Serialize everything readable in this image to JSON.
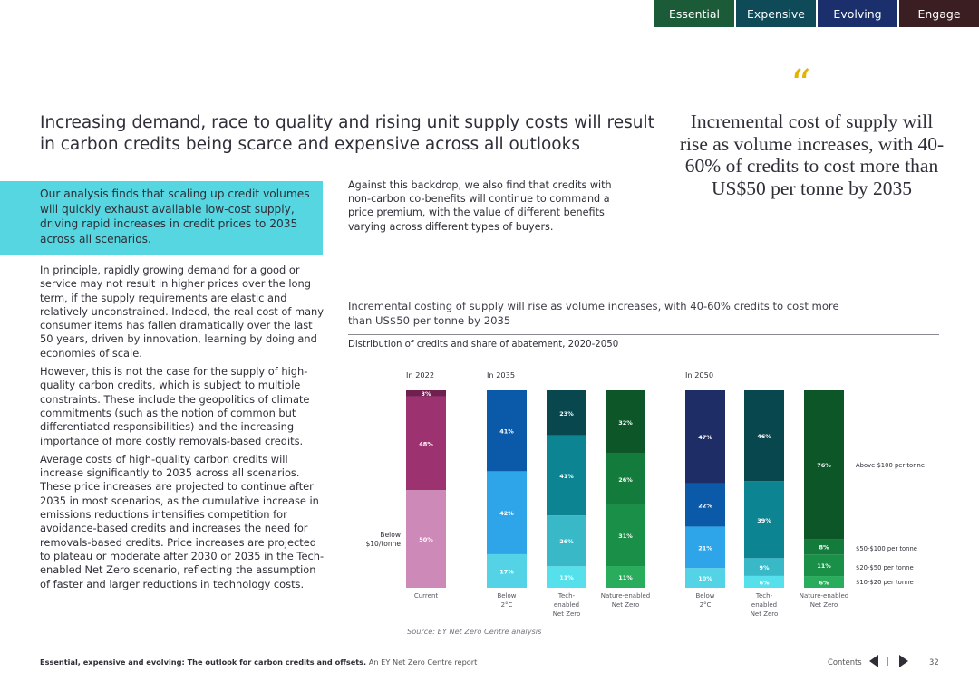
{
  "tabs": [
    {
      "label": "Essential",
      "color": "#1c5b37"
    },
    {
      "label": "Expensive",
      "color": "#0f4a58"
    },
    {
      "label": "Evolving",
      "color": "#1a2f6b"
    },
    {
      "label": "Engage",
      "color": "#3b1e22"
    }
  ],
  "headline": "Increasing demand, race to quality and rising unit supply costs will result in carbon credits being scarce and expensive across all outlooks",
  "quote": {
    "mark": "“",
    "text": "Incremental cost of supply will rise as volume increases, with 40-60% of credits to cost more than US$50 per tonne by 2035"
  },
  "highlight_text": "Our analysis finds that scaling up credit volumes will quickly exhaust available low-cost supply, driving rapid increases in credit prices to 2035 across all scenarios.",
  "mid_text": "Against this backdrop, we also find that credits with non-carbon co-benefits will continue to command a price premium, with the value of different benefits varying across different types of buyers.",
  "body_paragraphs": [
    "In principle, rapidly growing demand for a good or service may not result in higher prices over the long term, if the supply requirements are elastic and relatively unconstrained. Indeed, the real cost of many consumer items has fallen dramatically over the last 50 years, driven by innovation, learning by doing and economies of scale.",
    "However, this is not the case for the supply of high-quality carbon credits, which is subject to multiple constraints. These include the geopolitics of climate commitments (such as the notion of common but differentiated responsibilities) and the increasing importance of more costly removals-based credits.",
    "Average costs of high-quality carbon credits will increase significantly to 2035 across all scenarios. These price increases are projected to continue after 2035 in most scenarios, as the cumulative increase in emissions reductions intensifies competition for avoidance-based credits and increases the need for removals-based credits. Price increases are projected to plateau or moderate after 2030 or 2035 in the Tech-enabled Net Zero scenario, reflecting the assumption of faster and larger reductions in technology costs."
  ],
  "chart_title": "Incremental costing of supply will rise as volume increases, with 40-60% credits to cost more than US$50 per tonne by 2035",
  "chart_subtitle": "Distribution of credits and share of abatement, 2020-2050",
  "source": "Source: EY Net Zero Centre analysis",
  "footer": {
    "title": "Essential, expensive and evolving: The outlook for carbon credits and offsets.",
    "subtitle": " An EY Net Zero Centre report",
    "contents": "Contents",
    "page": "32"
  },
  "chart_data": {
    "type": "bar",
    "stacked": true,
    "unit": "%",
    "groups": [
      "In 2022",
      "In 2035",
      "In 2050"
    ],
    "bars": [
      {
        "group": "In 2022",
        "category": [
          "Current"
        ],
        "palette": [
          "#cd8ab8",
          "#9c3370",
          "#70204f"
        ],
        "values": [
          50,
          48,
          3
        ],
        "labels": [
          "50%",
          "48%",
          "3%"
        ]
      },
      {
        "group": "In 2035",
        "category": [
          "Below",
          "2°C"
        ],
        "palette": [
          "#55d3e6",
          "#2ea5e8",
          "#0b5aaa"
        ],
        "values": [
          17,
          42,
          41
        ],
        "labels": [
          "17%",
          "42%",
          "41%"
        ]
      },
      {
        "group": "In 2035",
        "category": [
          "Tech-",
          "enabled",
          "Net Zero"
        ],
        "palette": [
          "#55e0eb",
          "#39b8c8",
          "#0d8491",
          "#08474d"
        ],
        "values": [
          11,
          26,
          41,
          23
        ],
        "labels": [
          "11%",
          "26%",
          "41%",
          "23%"
        ]
      },
      {
        "group": "In 2035",
        "category": [
          "Nature-enabled",
          "Net Zero"
        ],
        "palette": [
          "#29ad5c",
          "#1a8f48",
          "#137c3d",
          "#0d5628"
        ],
        "values": [
          11,
          31,
          26,
          32
        ],
        "labels": [
          "11%",
          "31%",
          "26%",
          "32%"
        ]
      },
      {
        "group": "In 2050",
        "category": [
          "Below",
          "2°C"
        ],
        "palette": [
          "#55d3e6",
          "#2ea5e8",
          "#0b5aaa",
          "#1e2d66"
        ],
        "values": [
          10,
          21,
          22,
          47
        ],
        "labels": [
          "10%",
          "21%",
          "22%",
          "47%"
        ]
      },
      {
        "group": "In 2050",
        "category": [
          "Tech-",
          "enabled",
          "Net Zero"
        ],
        "palette": [
          "#55e0eb",
          "#39b8c8",
          "#0d8491",
          "#08474d"
        ],
        "values": [
          6,
          9,
          39,
          46
        ],
        "labels": [
          "6%",
          "9%",
          "39%",
          "46%"
        ]
      },
      {
        "group": "In 2050",
        "category": [
          "Nature-enabled",
          "Net Zero"
        ],
        "palette": [
          "#29ad5c",
          "#1a8f48",
          "#137c3d",
          "#0d5628"
        ],
        "values": [
          6,
          11,
          8,
          76
        ],
        "labels": [
          "6%",
          "11%",
          "8%",
          "76%"
        ]
      }
    ],
    "left_label": [
      "Below",
      "$10/tonne"
    ],
    "right_legend": [
      "Above $100 per tonne",
      "$50-$100 per tonne",
      "$20-$50 per tonne",
      "$10-$20 per tonne"
    ],
    "ylim": [
      0,
      100
    ]
  }
}
